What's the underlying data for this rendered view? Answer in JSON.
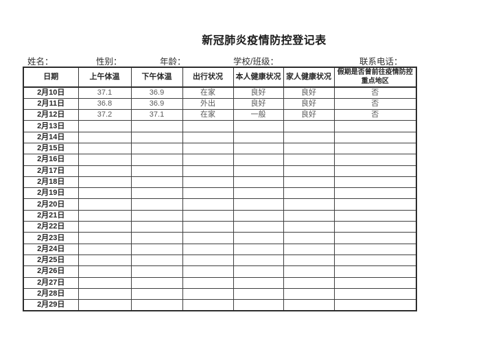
{
  "title": "新冠肺炎疫情防控登记表",
  "info_fields": [
    {
      "label": "姓名：",
      "value": ""
    },
    {
      "label": "性别：",
      "value": ""
    },
    {
      "label": "年龄：",
      "value": ""
    },
    {
      "label": "学校/班级：",
      "value": ""
    },
    {
      "label": "联系电话：",
      "value": ""
    }
  ],
  "table": {
    "columns": [
      "日期",
      "上午体温",
      "下午体温",
      "出行状况",
      "本人健康状况",
      "家人健康状况",
      "假期是否曾前往疫情防控重点地区"
    ],
    "rows": [
      [
        "2月10日",
        "37.1",
        "36.9",
        "在家",
        "良好",
        "良好",
        "否"
      ],
      [
        "2月11日",
        "36.8",
        "36.9",
        "外出",
        "良好",
        "良好",
        "否"
      ],
      [
        "2月12日",
        "37.2",
        "37.1",
        "在家",
        "一般",
        "良好",
        "否"
      ],
      [
        "2月13日",
        "",
        "",
        "",
        "",
        "",
        ""
      ],
      [
        "2月14日",
        "",
        "",
        "",
        "",
        "",
        ""
      ],
      [
        "2月15日",
        "",
        "",
        "",
        "",
        "",
        ""
      ],
      [
        "2月16日",
        "",
        "",
        "",
        "",
        "",
        ""
      ],
      [
        "2月17日",
        "",
        "",
        "",
        "",
        "",
        ""
      ],
      [
        "2月18日",
        "",
        "",
        "",
        "",
        "",
        ""
      ],
      [
        "2月19日",
        "",
        "",
        "",
        "",
        "",
        ""
      ],
      [
        "2月20日",
        "",
        "",
        "",
        "",
        "",
        ""
      ],
      [
        "2月21日",
        "",
        "",
        "",
        "",
        "",
        ""
      ],
      [
        "2月22日",
        "",
        "",
        "",
        "",
        "",
        ""
      ],
      [
        "2月23日",
        "",
        "",
        "",
        "",
        "",
        ""
      ],
      [
        "2月24日",
        "",
        "",
        "",
        "",
        "",
        ""
      ],
      [
        "2月25日",
        "",
        "",
        "",
        "",
        "",
        ""
      ],
      [
        "2月26日",
        "",
        "",
        "",
        "",
        "",
        ""
      ],
      [
        "2月27日",
        "",
        "",
        "",
        "",
        "",
        ""
      ],
      [
        "2月28日",
        "",
        "",
        "",
        "",
        "",
        ""
      ],
      [
        "2月29日",
        "",
        "",
        "",
        "",
        "",
        ""
      ]
    ]
  },
  "colors": {
    "title_text": "#1a1a1a",
    "header_text": "#262626",
    "value_text": "#585858",
    "table_border": "#2b2b2b",
    "background": "#ffffff"
  }
}
